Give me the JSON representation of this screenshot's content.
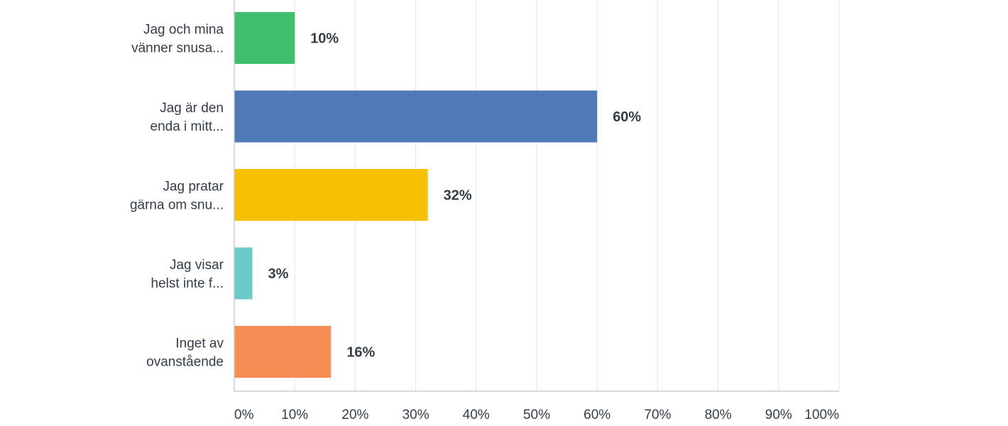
{
  "chart_data": {
    "type": "bar",
    "orientation": "horizontal",
    "categories": [
      [
        "Jag och mina",
        "vänner snusa..."
      ],
      [
        "Jag är den",
        "enda i mitt..."
      ],
      [
        "Jag pratar",
        "gärna om snu..."
      ],
      [
        "Jag visar",
        "helst inte f..."
      ],
      [
        "Inget av",
        "ovanstående"
      ]
    ],
    "values": [
      10,
      60,
      32,
      3,
      16
    ],
    "value_labels": [
      "10%",
      "60%",
      "32%",
      "3%",
      "16%"
    ],
    "colors": [
      "#3fbf6c",
      "#4f7ab6",
      "#f6bf00",
      "#6ccac9",
      "#f68d54"
    ],
    "xlim": [
      0,
      100
    ],
    "xticks": [
      0,
      10,
      20,
      30,
      40,
      50,
      60,
      70,
      80,
      90,
      100
    ],
    "xtick_labels": [
      "0%",
      "10%",
      "20%",
      "30%",
      "40%",
      "50%",
      "60%",
      "70%",
      "80%",
      "90%",
      "100%"
    ],
    "grid": true,
    "title": "",
    "xlabel": "",
    "ylabel": ""
  }
}
